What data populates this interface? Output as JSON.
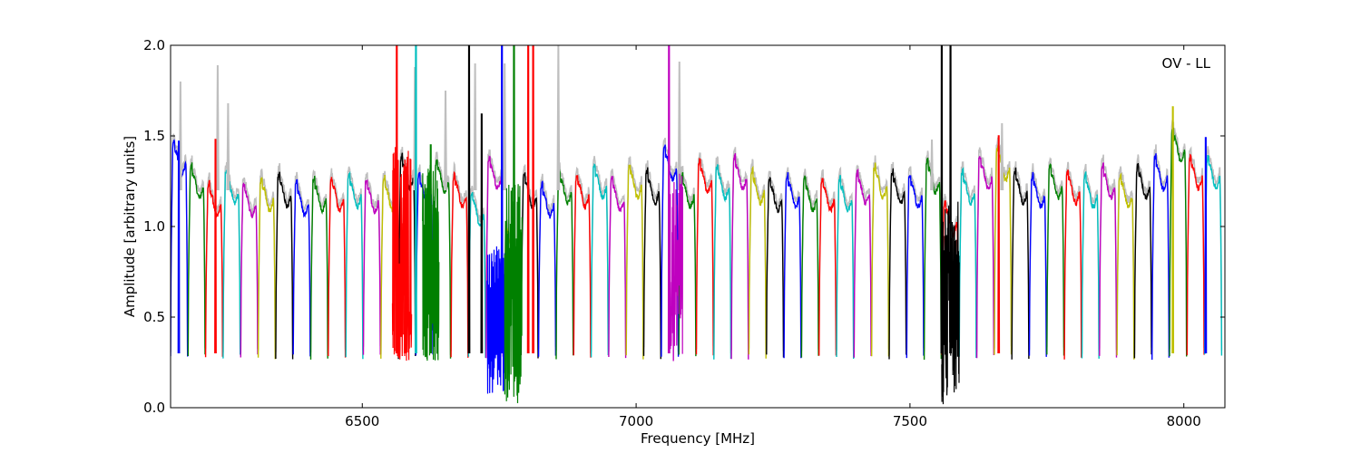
{
  "chart_data": {
    "type": "line",
    "title": "",
    "xlabel": "Frequency [MHz]",
    "ylabel": "Amplitude [arbitrary units]",
    "annotation": "OV - LL",
    "xlim": [
      6150,
      8075
    ],
    "ylim": [
      0.0,
      2.0
    ],
    "xticks": [
      6500,
      7000,
      7500,
      8000
    ],
    "yticks": [
      0.0,
      0.5,
      1.0,
      1.5,
      2.0
    ],
    "ytick_labels": [
      "0.0",
      "0.5",
      "1.0",
      "1.5",
      "2.0"
    ],
    "grid": false,
    "band_width_mhz": 32,
    "color_cycle": [
      "#0000ff",
      "#008000",
      "#ff0000",
      "#00bfbf",
      "#bf00bf",
      "#bfbf00",
      "#000000"
    ],
    "background_color": "#bfbfbf",
    "bands": [
      {
        "start": 6150,
        "level": 1.38
      },
      {
        "start": 6182,
        "level": 1.25
      },
      {
        "start": 6214,
        "level": 1.15
      },
      {
        "start": 6246,
        "level": 1.22
      },
      {
        "start": 6278,
        "level": 1.15
      },
      {
        "start": 6310,
        "level": 1.18
      },
      {
        "start": 6342,
        "level": 1.2
      },
      {
        "start": 6374,
        "level": 1.16
      },
      {
        "start": 6406,
        "level": 1.18
      },
      {
        "start": 6438,
        "level": 1.18
      },
      {
        "start": 6470,
        "level": 1.2
      },
      {
        "start": 6502,
        "level": 1.17
      },
      {
        "start": 6534,
        "level": 1.18
      },
      {
        "start": 6566,
        "level": 1.3
      },
      {
        "start": 6598,
        "level": 1.2
      },
      {
        "start": 6630,
        "level": 1.28
      },
      {
        "start": 6662,
        "level": 1.2
      },
      {
        "start": 6694,
        "level": 1.1
      },
      {
        "start": 6726,
        "level": 1.3
      },
      {
        "start": 6758,
        "level": 0.9
      },
      {
        "start": 6790,
        "level": 1.2
      },
      {
        "start": 6822,
        "level": 1.15
      },
      {
        "start": 6854,
        "level": 1.22
      },
      {
        "start": 6886,
        "level": 1.2
      },
      {
        "start": 6918,
        "level": 1.25
      },
      {
        "start": 6950,
        "level": 1.18
      },
      {
        "start": 6982,
        "level": 1.25
      },
      {
        "start": 7014,
        "level": 1.22
      },
      {
        "start": 7046,
        "level": 1.35
      },
      {
        "start": 7078,
        "level": 1.2
      },
      {
        "start": 7110,
        "level": 1.28
      },
      {
        "start": 7142,
        "level": 1.25
      },
      {
        "start": 7174,
        "level": 1.3
      },
      {
        "start": 7206,
        "level": 1.22
      },
      {
        "start": 7238,
        "level": 1.18
      },
      {
        "start": 7270,
        "level": 1.2
      },
      {
        "start": 7302,
        "level": 1.18
      },
      {
        "start": 7334,
        "level": 1.18
      },
      {
        "start": 7366,
        "level": 1.18
      },
      {
        "start": 7398,
        "level": 1.22
      },
      {
        "start": 7430,
        "level": 1.25
      },
      {
        "start": 7462,
        "level": 1.22
      },
      {
        "start": 7494,
        "level": 1.2
      },
      {
        "start": 7526,
        "level": 1.28
      },
      {
        "start": 7558,
        "level": 1.05
      },
      {
        "start": 7590,
        "level": 1.22
      },
      {
        "start": 7622,
        "level": 1.3
      },
      {
        "start": 7654,
        "level": 1.35
      },
      {
        "start": 7686,
        "level": 1.22
      },
      {
        "start": 7718,
        "level": 1.2
      },
      {
        "start": 7750,
        "level": 1.25
      },
      {
        "start": 7782,
        "level": 1.22
      },
      {
        "start": 7814,
        "level": 1.2
      },
      {
        "start": 7846,
        "level": 1.25
      },
      {
        "start": 7878,
        "level": 1.2
      },
      {
        "start": 7910,
        "level": 1.25
      },
      {
        "start": 7942,
        "level": 1.3
      },
      {
        "start": 7974,
        "level": 1.45
      },
      {
        "start": 8006,
        "level": 1.3
      },
      {
        "start": 8038,
        "level": 1.3
      }
    ],
    "spikes": [
      {
        "x": 6165,
        "y": 1.47,
        "color": "#0000ff"
      },
      {
        "x": 6232,
        "y": 1.48,
        "color": "#ff0000"
      },
      {
        "x": 6563,
        "y": 2.0,
        "color": "#ff0000"
      },
      {
        "x": 6578,
        "y": 1.3,
        "color": "#ff0000"
      },
      {
        "x": 6598,
        "y": 2.0,
        "color": "#00bfbf"
      },
      {
        "x": 6625,
        "y": 1.45,
        "color": "#008000"
      },
      {
        "x": 6695,
        "y": 2.0,
        "color": "#000000"
      },
      {
        "x": 6718,
        "y": 1.62,
        "color": "#000000"
      },
      {
        "x": 6755,
        "y": 2.0,
        "color": "#0000ff"
      },
      {
        "x": 6777,
        "y": 2.0,
        "color": "#008000"
      },
      {
        "x": 6803,
        "y": 2.0,
        "color": "#ff0000"
      },
      {
        "x": 6812,
        "y": 2.0,
        "color": "#ff0000"
      },
      {
        "x": 7060,
        "y": 2.0,
        "color": "#bf00bf"
      },
      {
        "x": 7558,
        "y": 2.0,
        "color": "#000000"
      },
      {
        "x": 7574,
        "y": 2.0,
        "color": "#000000"
      },
      {
        "x": 7662,
        "y": 1.5,
        "color": "#ff0000"
      },
      {
        "x": 7980,
        "y": 1.66,
        "color": "#bfbf00"
      },
      {
        "x": 8040,
        "y": 1.49,
        "color": "#0000ff"
      }
    ],
    "background_spikes": [
      {
        "x": 6168,
        "y": 1.8
      },
      {
        "x": 6236,
        "y": 1.89
      },
      {
        "x": 6255,
        "y": 1.68
      },
      {
        "x": 6596,
        "y": 1.88
      },
      {
        "x": 6652,
        "y": 1.75
      },
      {
        "x": 6706,
        "y": 1.9
      },
      {
        "x": 6760,
        "y": 1.9
      },
      {
        "x": 6858,
        "y": 2.0
      },
      {
        "x": 7079,
        "y": 1.91
      },
      {
        "x": 7540,
        "y": 1.48
      },
      {
        "x": 7668,
        "y": 1.57
      }
    ],
    "noisy_regions": [
      {
        "from": 6555,
        "to": 6590,
        "color": "#ff0000",
        "low": 0.25,
        "high": 1.45
      },
      {
        "from": 6610,
        "to": 6640,
        "color": "#008000",
        "low": 0.25,
        "high": 1.35
      },
      {
        "from": 6728,
        "to": 6760,
        "color": "#0000ff",
        "low": 0.07,
        "high": 0.9
      },
      {
        "from": 6760,
        "to": 6792,
        "color": "#008000",
        "low": 0.0,
        "high": 1.25
      },
      {
        "from": 7060,
        "to": 7085,
        "color": "#bf00bf",
        "low": 0.25,
        "high": 1.3
      },
      {
        "from": 7558,
        "to": 7590,
        "color": "#000000",
        "low": 0.0,
        "high": 1.15
      }
    ]
  }
}
